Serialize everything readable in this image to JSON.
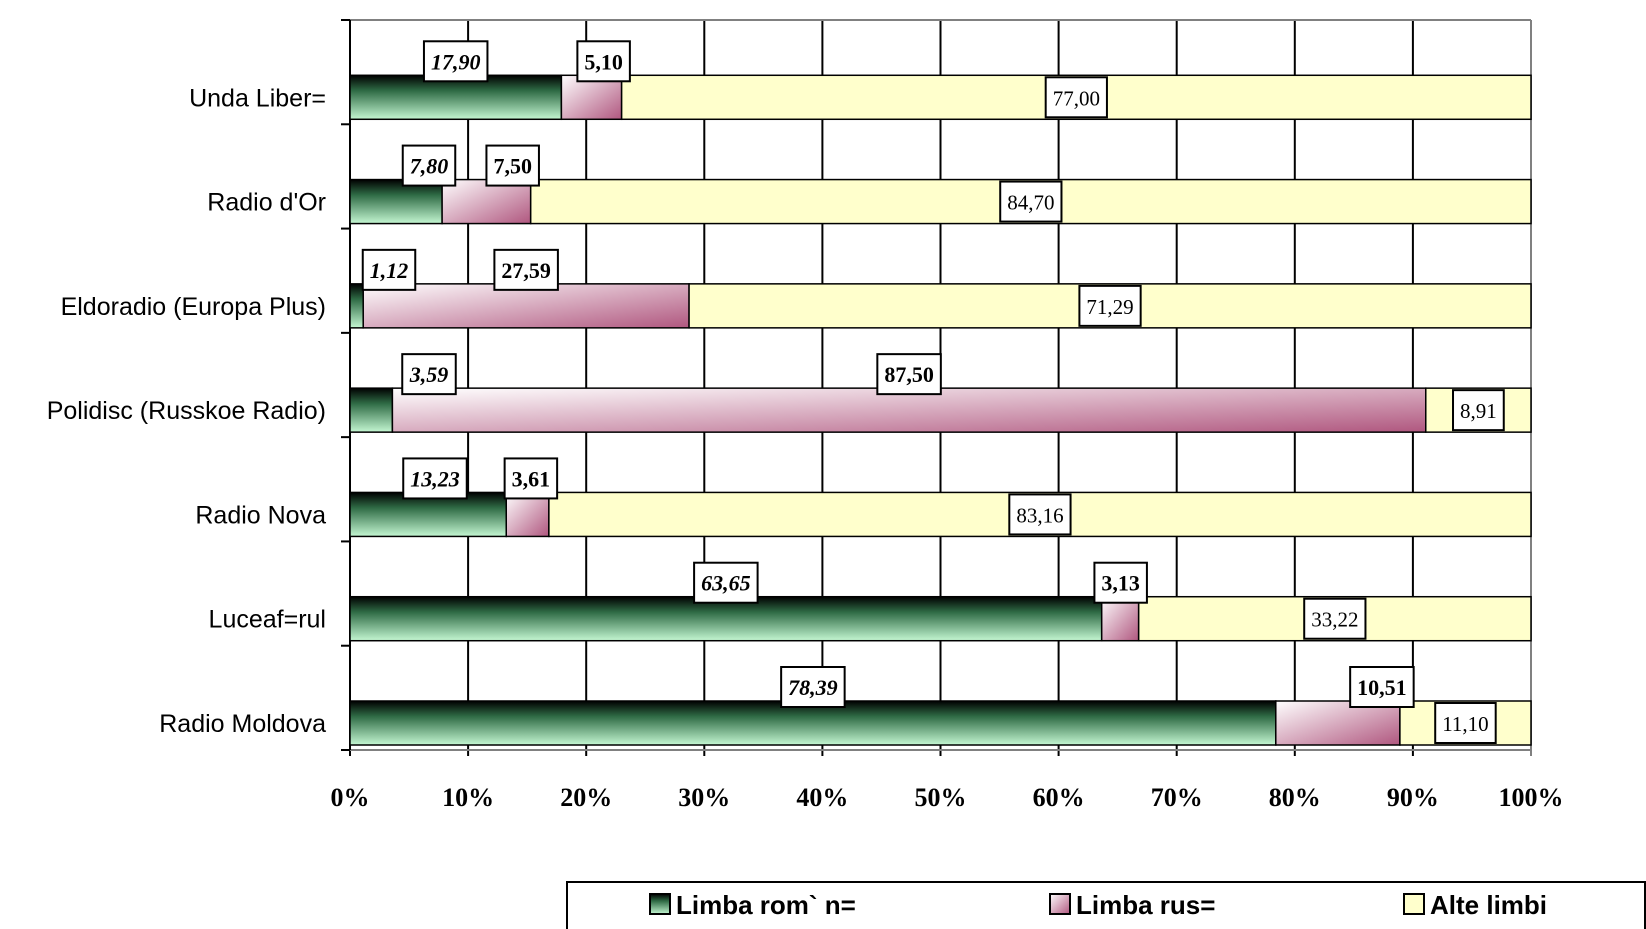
{
  "chart_data": {
    "type": "bar",
    "orientation": "horizontal",
    "stacked": "percent",
    "categories": [
      "Unda Liber=",
      "Radio d'Or",
      "Eldoradio (Europa Plus)",
      "Polidisc (Russkoe Radio)",
      "Radio Nova",
      "Luceaf=rul",
      "Radio Moldova"
    ],
    "series": [
      {
        "name": "Limba rom` n=",
        "values": [
          "17,90",
          "7,80",
          "1,12",
          "3,59",
          "13,23",
          "63,65",
          "78,39"
        ],
        "color": "#b8f2c9"
      },
      {
        "name": "Limba rus=",
        "values": [
          "5,10",
          "7,50",
          "27,59",
          "87,50",
          "3,61",
          "3,13",
          "10,51"
        ],
        "color": "#c06a93"
      },
      {
        "name": "Alte limbi",
        "values": [
          "77,00",
          "84,70",
          "71,29",
          "8,91",
          "83,16",
          "33,22",
          "11,10"
        ],
        "color": "#ffffcc"
      }
    ],
    "x_ticks": [
      "0%",
      "10%",
      "20%",
      "30%",
      "40%",
      "50%",
      "60%",
      "70%",
      "80%",
      "90%",
      "100%"
    ],
    "xlim": [
      0,
      100
    ],
    "grid": true,
    "legend_position": "bottom"
  }
}
